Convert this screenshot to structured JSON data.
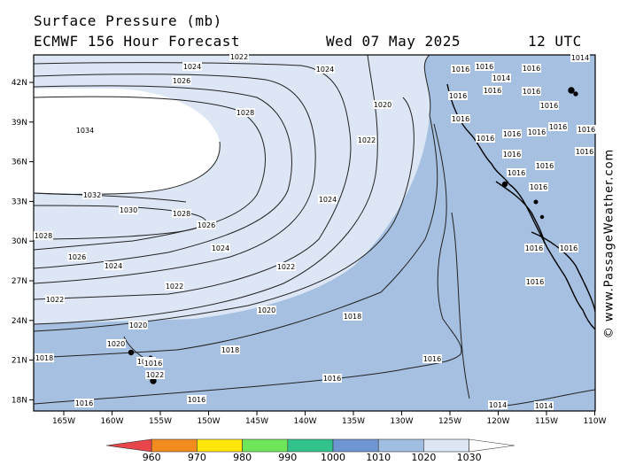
{
  "header": {
    "title": "Surface Pressure (mb)",
    "model": "ECMWF 156 Hour Forecast",
    "date": "Wed 07 May 2025",
    "time": "12 UTC"
  },
  "map": {
    "lat_labels": [
      "42N",
      "39N",
      "36N",
      "33N",
      "30N",
      "27N",
      "24N",
      "21N",
      "18N"
    ],
    "lon_labels": [
      "165W",
      "160W",
      "155W",
      "150W",
      "145W",
      "140W",
      "135W",
      "130W",
      "125W",
      "120W",
      "115W",
      "110W"
    ],
    "land_color": "#000000",
    "isobar_labels": [
      {
        "text": "1022"
      },
      {
        "text": "1024"
      },
      {
        "text": "1024"
      },
      {
        "text": "1026"
      },
      {
        "text": "1028"
      },
      {
        "text": "1020"
      },
      {
        "text": "1022"
      },
      {
        "text": "1034"
      },
      {
        "text": "1024"
      },
      {
        "text": "1032"
      },
      {
        "text": "1030"
      },
      {
        "text": "1028"
      },
      {
        "text": "1026"
      },
      {
        "text": "1028"
      },
      {
        "text": "1024"
      },
      {
        "text": "1026"
      },
      {
        "text": "1024"
      },
      {
        "text": "1022"
      },
      {
        "text": "1022"
      },
      {
        "text": "1022"
      },
      {
        "text": "1020"
      },
      {
        "text": "1020"
      },
      {
        "text": "1018"
      },
      {
        "text": "1020"
      },
      {
        "text": "1018"
      },
      {
        "text": "1018"
      },
      {
        "text": "1020"
      },
      {
        "text": "1016"
      },
      {
        "text": "1022"
      },
      {
        "text": "1016"
      },
      {
        "text": "1016"
      },
      {
        "text": "1016"
      },
      {
        "text": "1016"
      },
      {
        "text": "1014"
      },
      {
        "text": "1014"
      },
      {
        "text": "1016"
      },
      {
        "text": "1016"
      },
      {
        "text": "1014"
      },
      {
        "text": "1016"
      },
      {
        "text": "1014"
      },
      {
        "text": "1016"
      },
      {
        "text": "1016"
      },
      {
        "text": "1016"
      },
      {
        "text": "1016"
      },
      {
        "text": "1016"
      },
      {
        "text": "1016"
      },
      {
        "text": "1016"
      },
      {
        "text": "1016"
      },
      {
        "text": "1016"
      },
      {
        "text": "1016"
      },
      {
        "text": "1016"
      },
      {
        "text": "1016"
      },
      {
        "text": "1016"
      },
      {
        "text": "1016"
      },
      {
        "text": "1016"
      },
      {
        "text": "1016"
      },
      {
        "text": "1016"
      },
      {
        "text": "1016"
      }
    ]
  },
  "colorbar": {
    "ticks": [
      "960",
      "970",
      "980",
      "990",
      "1000",
      "1010",
      "1020",
      "1030"
    ],
    "colors": [
      "#e8464a",
      "#f28c1e",
      "#ffe60a",
      "#6ee65a",
      "#32c38c",
      "#6e96d2",
      "#a0bee1",
      "#dce6f5",
      "#ffffff"
    ]
  },
  "watermark": "© www.PassageWeather.com"
}
